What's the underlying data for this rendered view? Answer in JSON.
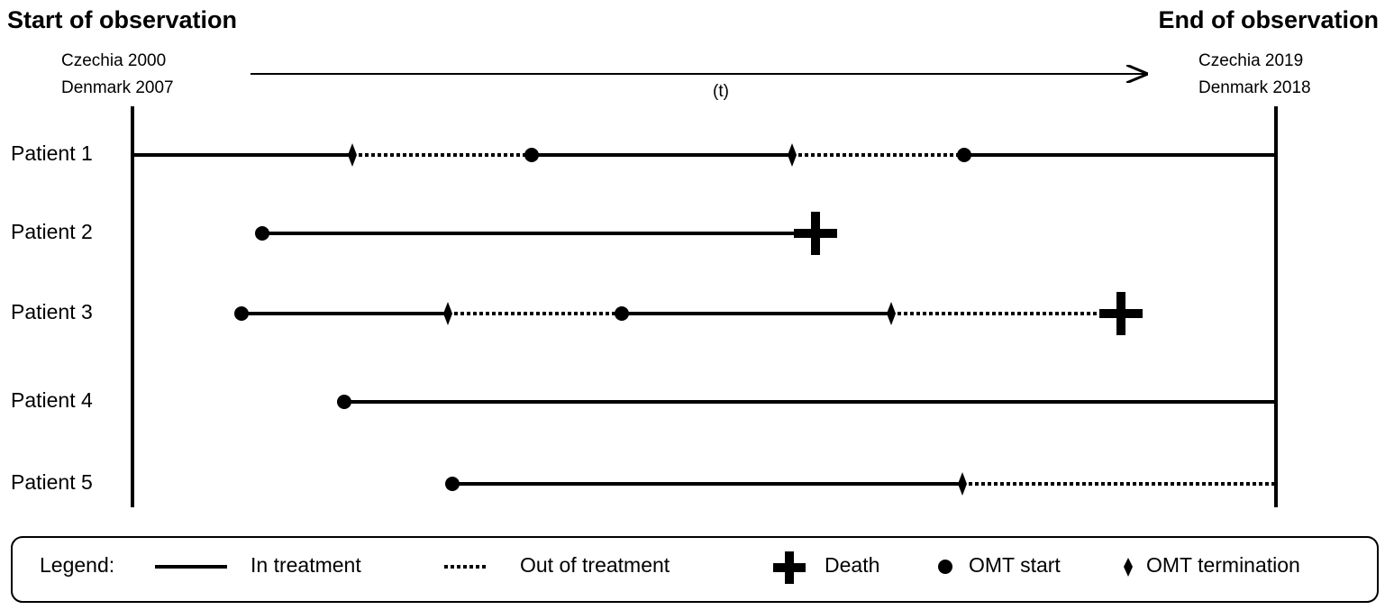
{
  "header": {
    "start_title": "Start of observation",
    "end_title": "End of observation",
    "start_labels": [
      "Czechia 2000",
      "Denmark 2007"
    ],
    "end_labels": [
      "Czechia 2019",
      "Denmark 2018"
    ],
    "time_label": "(t)"
  },
  "patients": [
    "Patient 1",
    "Patient 2",
    "Patient 3",
    "Patient 4",
    "Patient 5"
  ],
  "legend": {
    "title": "Legend:",
    "items": [
      "In treatment",
      "Out of treatment",
      "Death",
      "OMT start",
      "OMT termination"
    ]
  }
}
